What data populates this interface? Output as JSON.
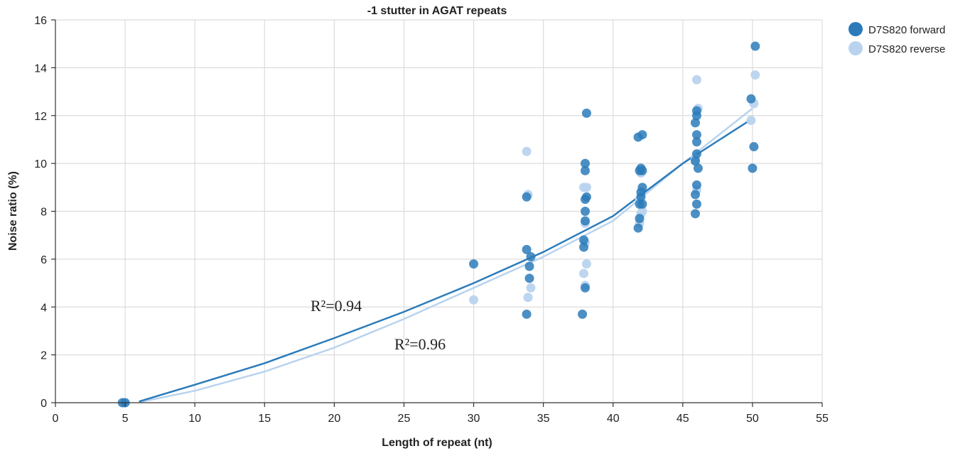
{
  "chart_data": {
    "type": "scatter",
    "title": "-1 stutter in AGAT repeats",
    "xlabel": "Length of repeat (nt)",
    "ylabel": "Noise ratio (%)",
    "xlim": [
      0,
      55
    ],
    "ylim": [
      0,
      16
    ],
    "xticks": [
      0,
      5,
      10,
      15,
      20,
      25,
      30,
      35,
      40,
      45,
      50,
      55
    ],
    "yticks": [
      0,
      2,
      4,
      6,
      8,
      10,
      12,
      14,
      16
    ],
    "grid": true,
    "legend_position": "top-right",
    "series": [
      {
        "name": "D7S820 forward",
        "color": "#2b7bba",
        "points": [
          [
            4.8,
            0
          ],
          [
            5,
            0
          ],
          [
            30,
            5.8
          ],
          [
            33.8,
            3.7
          ],
          [
            33.8,
            6.4
          ],
          [
            33.8,
            8.6
          ],
          [
            34,
            5.2
          ],
          [
            34,
            5.7
          ],
          [
            34.1,
            6.1
          ],
          [
            37.8,
            3.7
          ],
          [
            37.9,
            6.5
          ],
          [
            37.9,
            6.8
          ],
          [
            38,
            4.8
          ],
          [
            38,
            7.6
          ],
          [
            38,
            8.0
          ],
          [
            38,
            8.5
          ],
          [
            38.1,
            8.6
          ],
          [
            38,
            9.7
          ],
          [
            38,
            10.0
          ],
          [
            38.1,
            12.1
          ],
          [
            41.8,
            7.3
          ],
          [
            41.9,
            7.7
          ],
          [
            41.9,
            8.3
          ],
          [
            42,
            8.6
          ],
          [
            42,
            8.8
          ],
          [
            42.1,
            9.0
          ],
          [
            41.9,
            9.7
          ],
          [
            42,
            9.8
          ],
          [
            41.8,
            11.1
          ],
          [
            42.1,
            11.2
          ],
          [
            42.1,
            8.3
          ],
          [
            42.1,
            9.7
          ],
          [
            45.9,
            7.9
          ],
          [
            46,
            8.3
          ],
          [
            45.9,
            8.7
          ],
          [
            46,
            9.1
          ],
          [
            46.1,
            9.8
          ],
          [
            45.9,
            10.1
          ],
          [
            46,
            10.4
          ],
          [
            46,
            10.9
          ],
          [
            46,
            11.2
          ],
          [
            45.9,
            11.7
          ],
          [
            46,
            12.0
          ],
          [
            46,
            12.2
          ],
          [
            50,
            9.8
          ],
          [
            50.1,
            10.7
          ],
          [
            49.9,
            12.7
          ],
          [
            50.2,
            14.9
          ]
        ],
        "trendline": {
          "r2_label": "R²=0.94",
          "points": [
            [
              6,
              0.05
            ],
            [
              10,
              0.75
            ],
            [
              15,
              1.65
            ],
            [
              20,
              2.7
            ],
            [
              25,
              3.8
            ],
            [
              30,
              5.0
            ],
            [
              35,
              6.3
            ],
            [
              40,
              7.8
            ],
            [
              45,
              10.0
            ],
            [
              49.8,
              11.8
            ]
          ]
        }
      },
      {
        "name": "D7S820 reverse",
        "color": "#b9d3ee",
        "points": [
          [
            5,
            0
          ],
          [
            30,
            4.3
          ],
          [
            33.9,
            4.4
          ],
          [
            34.1,
            4.8
          ],
          [
            33.8,
            10.5
          ],
          [
            33.9,
            8.7
          ],
          [
            38,
            4.9
          ],
          [
            37.9,
            5.4
          ],
          [
            38.1,
            5.8
          ],
          [
            38,
            6.7
          ],
          [
            38,
            7.5
          ],
          [
            37.9,
            9.0
          ],
          [
            38.1,
            9.0
          ],
          [
            41.9,
            7.5
          ],
          [
            42,
            7.9
          ],
          [
            42.1,
            8.0
          ],
          [
            41.9,
            8.5
          ],
          [
            42,
            9.6
          ],
          [
            46,
            8.9
          ],
          [
            45.9,
            10.2
          ],
          [
            46.1,
            12.3
          ],
          [
            46,
            13.5
          ],
          [
            49.9,
            11.8
          ],
          [
            50.1,
            12.5
          ],
          [
            50.2,
            13.7
          ]
        ],
        "trendline": {
          "r2_label": "R²=0.96",
          "points": [
            [
              6,
              0.02
            ],
            [
              10,
              0.5
            ],
            [
              15,
              1.3
            ],
            [
              20,
              2.3
            ],
            [
              25,
              3.5
            ],
            [
              30,
              4.8
            ],
            [
              35,
              6.1
            ],
            [
              40,
              7.6
            ],
            [
              45,
              10.0
            ],
            [
              50,
              12.3
            ]
          ]
        }
      }
    ]
  }
}
